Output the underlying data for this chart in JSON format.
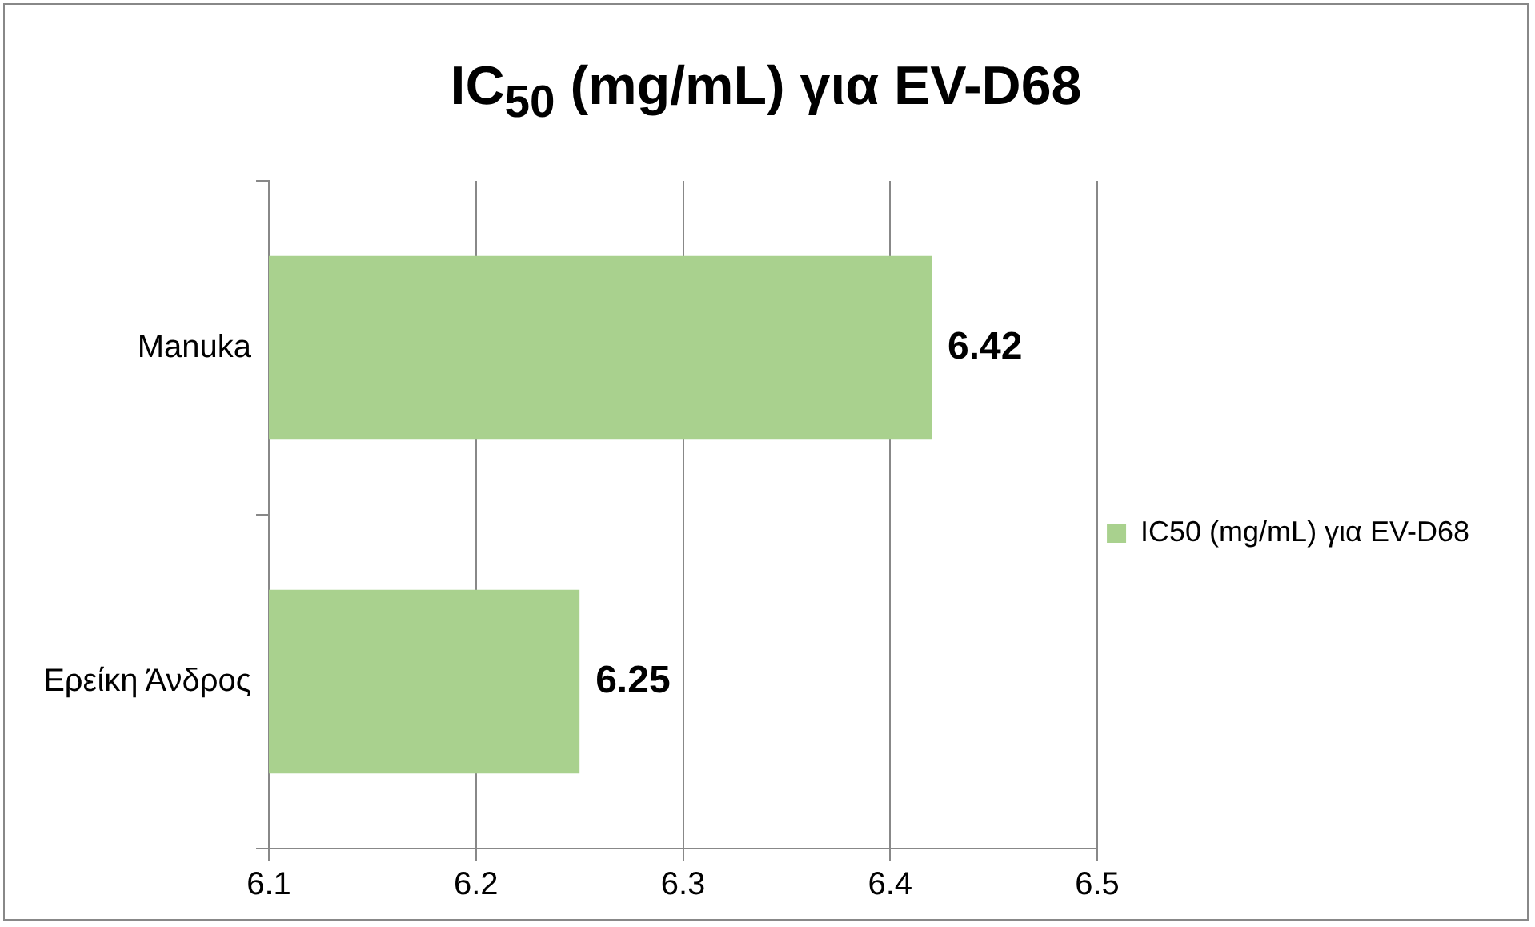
{
  "chart_data": {
    "type": "bar",
    "orientation": "horizontal",
    "title": "IC$_{50}$ (mg/mL) για EV-D68",
    "categories": [
      "Manuka",
      "Ερείκη Άνδρος"
    ],
    "series": [
      {
        "name": "IC50 (mg/mL) για EV-D68",
        "color": "#a9d18e",
        "values": [
          6.42,
          6.25
        ]
      }
    ],
    "xlim": [
      6.1,
      6.5
    ],
    "xticks": [
      6.1,
      6.2,
      6.3,
      6.4,
      6.5
    ],
    "grid": "x",
    "legend": "right",
    "data_labels": true
  }
}
